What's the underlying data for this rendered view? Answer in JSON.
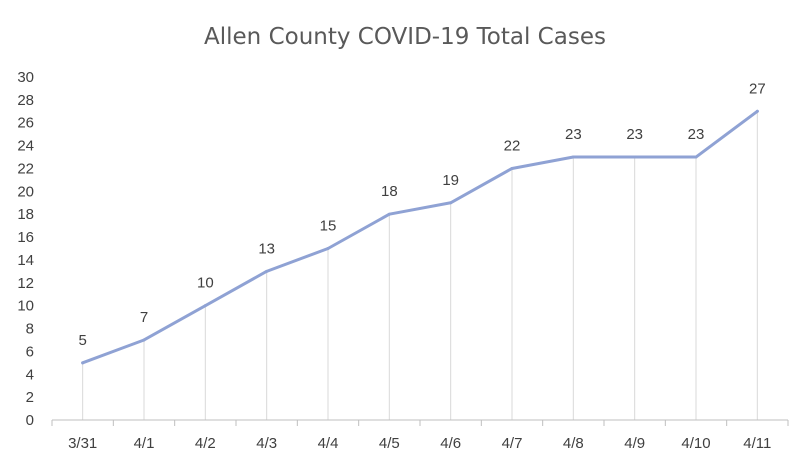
{
  "chart_data": {
    "type": "line",
    "title": "Allen County COVID-19 Total Cases",
    "xlabel": "",
    "ylabel": "",
    "categories": [
      "3/31",
      "4/1",
      "4/2",
      "4/3",
      "4/4",
      "4/5",
      "4/6",
      "4/7",
      "4/8",
      "4/9",
      "4/10",
      "4/11"
    ],
    "series": [
      {
        "values": [
          5,
          7,
          10,
          13,
          15,
          18,
          19,
          22,
          23,
          23,
          23,
          27
        ]
      }
    ],
    "ylim": [
      0,
      30
    ],
    "ytick_step": 2,
    "yticks": [
      "0",
      "2",
      "4",
      "6",
      "8",
      "10",
      "12",
      "14",
      "16",
      "18",
      "20",
      "22",
      "24",
      "26",
      "28",
      "30"
    ],
    "data_labels": true,
    "drop_lines": true,
    "gridlines": false,
    "legend": "none",
    "colors": {
      "line": "#8FA2D4",
      "drop_line": "#D9D9D9",
      "axis": "#BFBFBF",
      "title": "#595959",
      "text": "#404040"
    }
  }
}
